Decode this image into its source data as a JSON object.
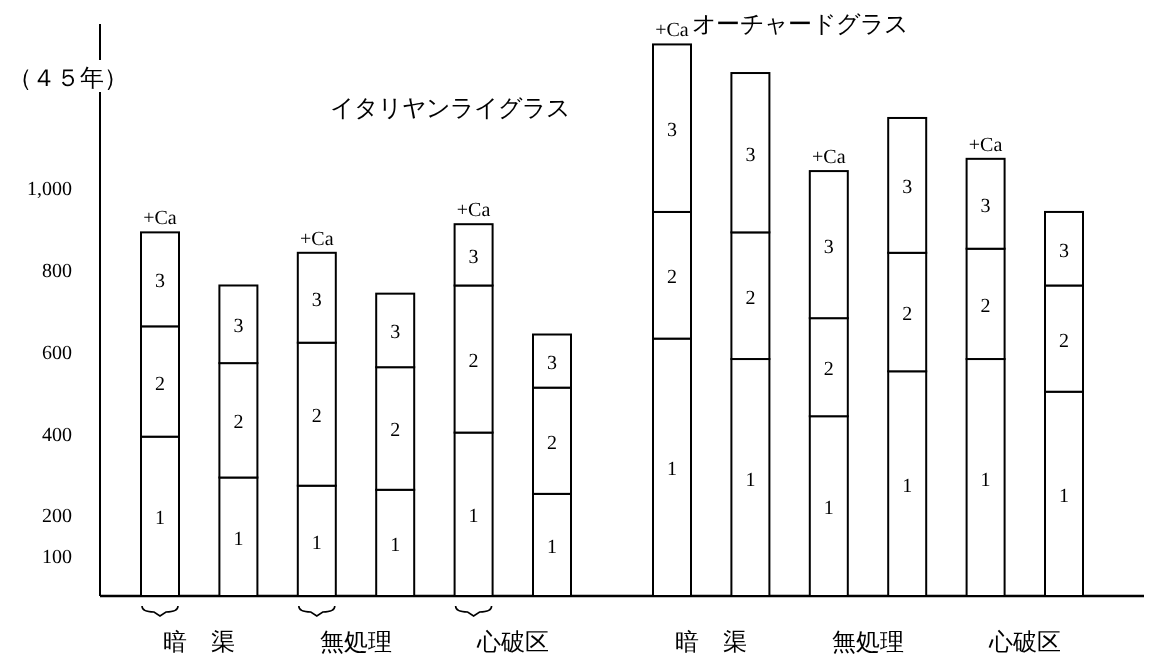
{
  "chart_data": {
    "type": "bar",
    "ylabel": "（４５年）",
    "stacked": true,
    "legend": false,
    "grid": false,
    "categories": [
      null,
      null,
      null,
      null,
      null,
      null,
      null,
      null,
      null,
      null,
      null,
      null
    ],
    "series": [
      {
        "name": "1",
        "color": "#ffffff",
        "values": [
          390,
          290,
          270,
          260,
          400,
          250,
          630,
          580,
          440,
          550,
          580,
          500
        ]
      },
      {
        "name": "2",
        "color": "#ffffff",
        "values": [
          270,
          280,
          350,
          300,
          360,
          260,
          310,
          310,
          240,
          290,
          270,
          260
        ]
      },
      {
        "name": "3",
        "color": "#ffffff",
        "values": [
          230,
          190,
          220,
          180,
          150,
          130,
          410,
          390,
          360,
          330,
          220,
          180
        ]
      }
    ],
    "ylim": [
      0,
      1400
    ],
    "yticks": [
      100,
      200,
      400,
      600,
      800,
      {
        "value": 1000,
        "label": "1,000"
      }
    ],
    "annotations": [
      "イタリヤンライグラス",
      "オーチャードグラス",
      "暗　渠",
      "無処理",
      "心破区",
      "暗　渠",
      "無処理",
      "心破区",
      "+Ca",
      "+Ca",
      "+Ca",
      "+Ca",
      "+Ca",
      "+Ca"
    ]
  }
}
